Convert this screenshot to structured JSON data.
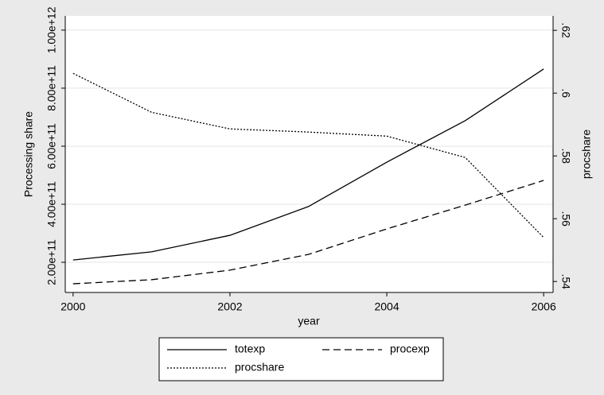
{
  "chart_data": {
    "type": "line",
    "x": [
      2000,
      2001,
      2002,
      2003,
      2004,
      2005,
      2006
    ],
    "xlabel": "year",
    "ylabel": "Processing share",
    "y2label": "procshare",
    "xlim": [
      1999.9,
      2006.12
    ],
    "xticks": [
      2000,
      2002,
      2004,
      2006
    ],
    "ylim": [
      96000000000,
      1049000000000
    ],
    "yticks": [
      {
        "value": 200000000000,
        "label": "2.00e+11"
      },
      {
        "value": 400000000000,
        "label": "4.00e+11"
      },
      {
        "value": 600000000000,
        "label": "6.00e+11"
      },
      {
        "value": 800000000000,
        "label": "8.00e+11"
      },
      {
        "value": 1000000000000,
        "label": "1.00e+12"
      }
    ],
    "y2lim": [
      0.5365,
      0.6246
    ],
    "y2ticks": [
      {
        "value": 0.54,
        "label": ".54"
      },
      {
        "value": 0.56,
        "label": ".56"
      },
      {
        "value": 0.58,
        "label": ".58"
      },
      {
        "value": 0.6,
        "label": ".6"
      },
      {
        "value": 0.62,
        "label": ".62"
      }
    ],
    "grid": true,
    "series": [
      {
        "name": "totexp",
        "color": "#000000",
        "dash": "solid",
        "values": [
          208000000000,
          236000000000,
          293000000000,
          392000000000,
          545000000000,
          688000000000,
          866000000000
        ]
      },
      {
        "name": "procexp",
        "color": "#000000",
        "dash": "dashed",
        "values": [
          126000000000,
          140000000000,
          173000000000,
          227000000000,
          315000000000,
          397000000000,
          482000000000
        ]
      },
      {
        "name": "procshare",
        "color": "#000000",
        "dash": "dotted",
        "axis": "y2",
        "values": [
          0.6063,
          0.5939,
          0.5886,
          0.5876,
          0.5863,
          0.5795,
          0.554
        ]
      }
    ]
  }
}
